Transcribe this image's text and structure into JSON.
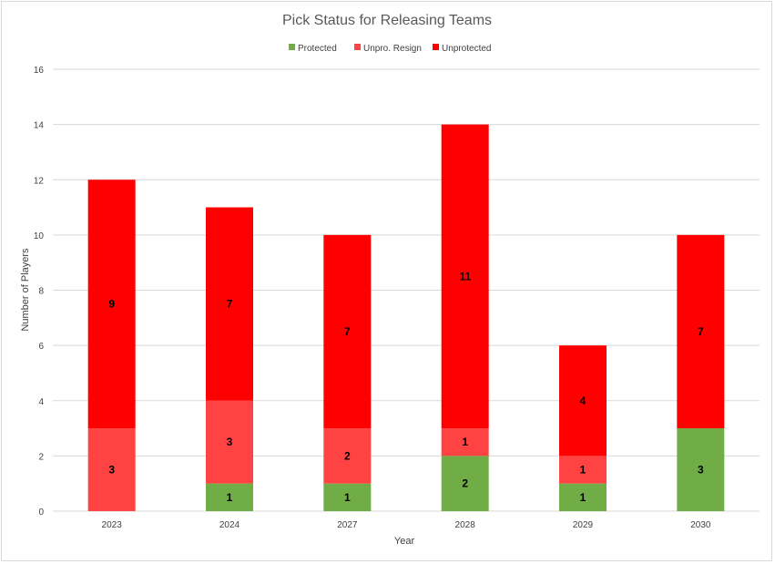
{
  "chart_data": {
    "type": "bar",
    "stacked": true,
    "title": "Pick Status for Releasing Teams",
    "xlabel": "Year",
    "ylabel": "Number of Players",
    "categories": [
      "2023",
      "2024",
      "2027",
      "2028",
      "2029",
      "2030"
    ],
    "ylim": [
      0,
      16
    ],
    "yticks": [
      0,
      2,
      4,
      6,
      8,
      10,
      12,
      14,
      16
    ],
    "grid": true,
    "legend_position": "top",
    "series": [
      {
        "name": "Protected",
        "color": "#70ad47",
        "values": [
          0,
          1,
          1,
          2,
          1,
          3
        ]
      },
      {
        "name": "Unpro. Resign",
        "color": "#ff4343",
        "values": [
          3,
          3,
          2,
          1,
          1,
          0
        ]
      },
      {
        "name": "Unprotected",
        "color": "#ff0000",
        "values": [
          9,
          7,
          7,
          11,
          4,
          7
        ]
      }
    ]
  }
}
